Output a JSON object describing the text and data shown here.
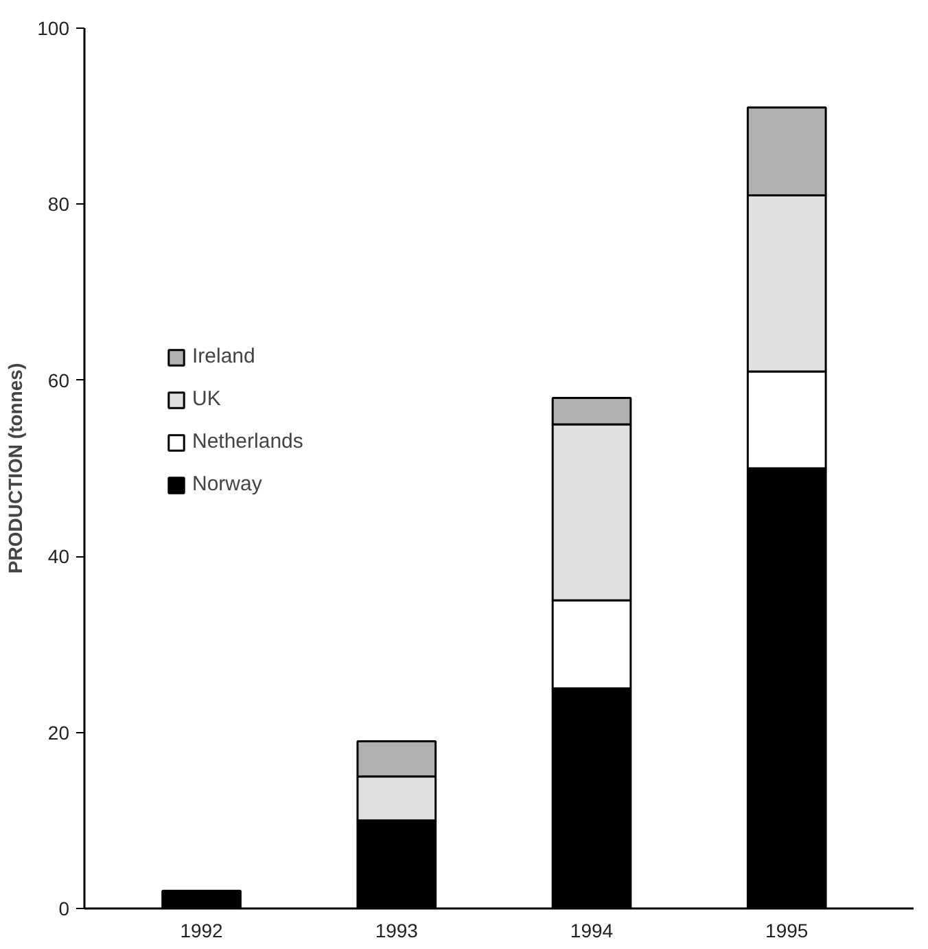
{
  "chart_data": {
    "type": "bar",
    "stacked": true,
    "ylabel": "PRODUCTION (tonnes)",
    "categories": [
      "1992",
      "1993",
      "1994",
      "1995"
    ],
    "series": [
      {
        "name": "Norway",
        "color": "#000000",
        "values": [
          2,
          10,
          25,
          50
        ]
      },
      {
        "name": "Netherlands",
        "color": "#ffffff",
        "values": [
          null,
          null,
          10,
          11
        ]
      },
      {
        "name": "UK",
        "color": "#e0e0e0",
        "values": [
          null,
          5,
          20,
          20
        ]
      },
      {
        "name": "Ireland",
        "color": "#b0b0b0",
        "values": [
          null,
          4,
          3,
          10
        ]
      }
    ],
    "ylim": [
      0,
      100
    ],
    "yticks": [
      0,
      20,
      40,
      60,
      80,
      100
    ],
    "grid": false,
    "legend": "left"
  }
}
